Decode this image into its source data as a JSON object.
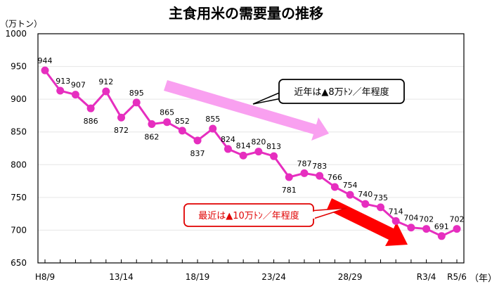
{
  "chart_data": {
    "type": "line",
    "title": "主食用米の需要量の推移",
    "ylabel": "（万トン）",
    "xlabel": "（年）",
    "ylim": [
      650,
      1000
    ],
    "yticks": [
      650,
      700,
      750,
      800,
      850,
      900,
      950,
      1000
    ],
    "grid": true,
    "x_tick_labels": [
      {
        "index": 0,
        "label": "H8/9"
      },
      {
        "index": 5,
        "label": "13/14"
      },
      {
        "index": 10,
        "label": "18/19"
      },
      {
        "index": 15,
        "label": "23/24"
      },
      {
        "index": 20,
        "label": "28/29"
      },
      {
        "index": 25,
        "label": "R3/4"
      },
      {
        "index": 27,
        "label": "R5/6"
      }
    ],
    "values": [
      944,
      913,
      907,
      886,
      912,
      872,
      895,
      862,
      865,
      852,
      837,
      855,
      824,
      814,
      820,
      813,
      781,
      787,
      783,
      766,
      754,
      740,
      735,
      714,
      704,
      702,
      691,
      702
    ],
    "line_color": "#e62ebf",
    "annotations": [
      {
        "text": "近年は▲8万ﾄﾝ／年程度",
        "color": "#000000",
        "arrow_color": "#f9a0f0"
      },
      {
        "text": "最近は▲10万ﾄﾝ／年程度",
        "color": "#e00000",
        "arrow_color": "#ff0000"
      }
    ]
  }
}
